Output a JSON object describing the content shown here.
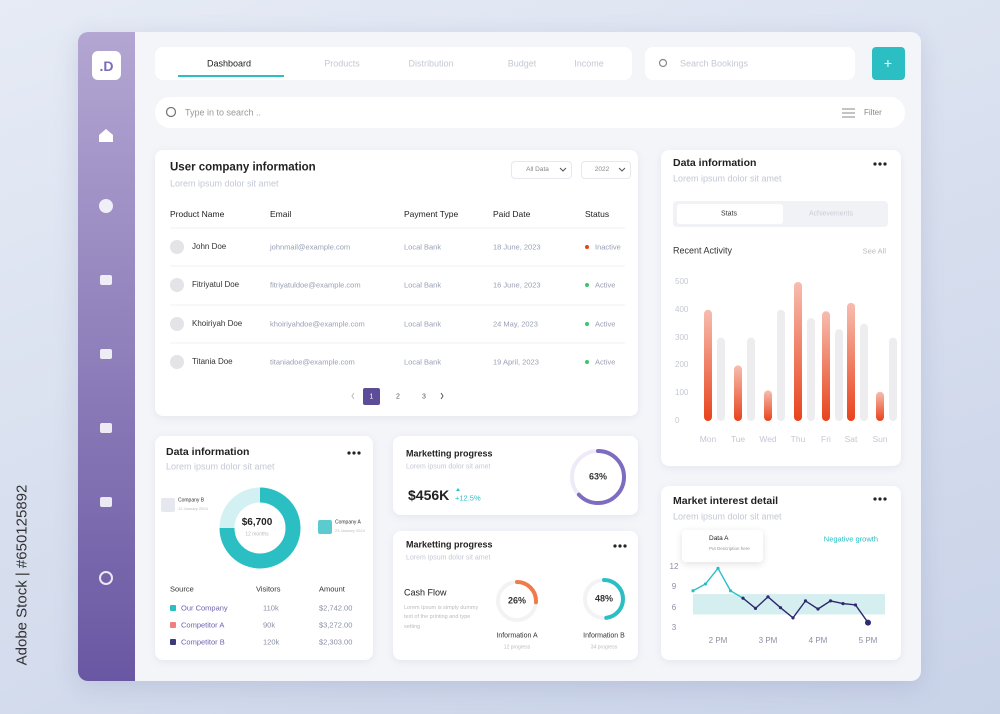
{
  "watermark": "Adobe Stock | #650125892",
  "sidebar": {
    "logo": ".D"
  },
  "nav": {
    "tabs": [
      "Dashboard",
      "Products",
      "Distribution",
      "Budget",
      "Income"
    ],
    "search_bookings": "Search Bookings",
    "add": "+"
  },
  "search": {
    "placeholder": "Type in to search ..",
    "filter": "Filter"
  },
  "users": {
    "title": "User company information",
    "subtitle": "Lorem ipsum dolor sit amet",
    "filters": [
      "All Data",
      "2022"
    ],
    "columns": [
      "Product Name",
      "Email",
      "Payment Type",
      "Paid Date",
      "Status"
    ],
    "rows": [
      [
        "John Doe",
        "johnmail@example.com",
        "Local Bank",
        "18 June, 2023",
        "Inactive"
      ],
      [
        "Fitriyatul Doe",
        "fitriyatuldoe@example.com",
        "Local Bank",
        "16 June, 2023",
        "Active"
      ],
      [
        "Khoiriyah Doe",
        "khoiriyahdoe@example.com",
        "Local Bank",
        "24 May, 2023",
        "Active"
      ],
      [
        "Titania Doe",
        "titaniadoe@example.com",
        "Local Bank",
        "19 April, 2023",
        "Active"
      ]
    ],
    "status_colors": [
      "#e8431c",
      "#3cc46e",
      "#3cc46e",
      "#3cc46e"
    ],
    "pages": [
      "1",
      "2",
      "3"
    ]
  },
  "activity": {
    "title": "Data information",
    "subtitle": "Lorem ipsum dolor sit amet",
    "tabs": [
      "Stats",
      "Achievements"
    ],
    "heading": "Recent Activity",
    "link": "See All"
  },
  "sources": {
    "title": "Data information",
    "subtitle": "Lorem ipsum dolor sit amet",
    "columns": [
      "Source",
      "Visitors",
      "Amount"
    ],
    "rows": [
      [
        "Our Company",
        "110k",
        "$2,742.00"
      ],
      [
        "Competitor A",
        "90k",
        "$3,272.00"
      ],
      [
        "Competitor B",
        "120k",
        "$2,303.00"
      ]
    ],
    "colors": [
      "#2bbfc4",
      "#f08080",
      "#3e3a7a"
    ]
  },
  "progress1": {
    "title": "Marketting progress",
    "subtitle": "Lorem ipsum dolor sit amet",
    "amount": "$456K",
    "change": "+12.5%",
    "ring": {
      "value": 63,
      "label": "63%",
      "color": "#7d6cc0"
    }
  },
  "progress2": {
    "title": "Marketting progress",
    "subtitle": "Lorem ipsum dolor sit amet",
    "heading": "Cash Flow",
    "text": "Lorem Ipsum is simply dummy text of the printing and type setting",
    "rings": [
      {
        "value": 26,
        "label": "26%",
        "name": "Information A",
        "note": "12 progress",
        "color": "#f07a4a"
      },
      {
        "value": 48,
        "label": "48%",
        "name": "Information B",
        "note": "34 progress",
        "color": "#2bbfc4"
      }
    ]
  },
  "market": {
    "title": "Market interest detail",
    "subtitle": "Lorem ipsum dolor sit amet"
  },
  "chart_data": [
    {
      "type": "bar",
      "categories": [
        "Mon",
        "Tue",
        "Wed",
        "Thu",
        "Fri",
        "Sat",
        "Sun"
      ],
      "series": [
        {
          "color": "#e8431c",
          "values": [
            400,
            200,
            110,
            500,
            395,
            425,
            105
          ]
        },
        {
          "color": "#ededf0",
          "values": [
            300,
            300,
            400,
            370,
            330,
            350,
            300
          ]
        }
      ],
      "ylim": [
        0,
        500
      ],
      "yticks": [
        0,
        100,
        200,
        300,
        400,
        500
      ],
      "grid": false
    },
    {
      "type": "line",
      "xlim": [
        13.5,
        17
      ],
      "xticks": [
        {
          "value": 14,
          "label": "2 PM"
        },
        {
          "value": 15,
          "label": "3 PM"
        },
        {
          "value": 16,
          "label": "4 PM"
        },
        {
          "value": 17,
          "label": "5 PM"
        }
      ],
      "ylim": [
        2.5,
        13
      ],
      "yticks": [
        3,
        6,
        9,
        12
      ],
      "band": [
        5,
        8
      ],
      "band_color": "#d5eff1",
      "series": [
        {
          "color": "#2bbfc4",
          "x": [
            13.5,
            13.75,
            14,
            14.25,
            14.5
          ],
          "values": [
            8.5,
            9.5,
            11.8,
            8.5,
            7.4
          ]
        },
        {
          "color": "#2e2a6e",
          "x": [
            14.5,
            14.75,
            15,
            15.25,
            15.5,
            15.75,
            16,
            16.25,
            16.5,
            16.75,
            17
          ],
          "values": [
            7.4,
            5.9,
            7.6,
            6,
            4.5,
            7,
            5.8,
            7,
            6.6,
            6.4,
            3.8
          ]
        }
      ],
      "tooltip": {
        "title": "Data A",
        "text": "Put Description here"
      },
      "annotation": "Negative growth"
    },
    {
      "type": "pie",
      "values": [
        75,
        25
      ],
      "colors": [
        "#2bbfc4",
        "#d3f1f2"
      ],
      "center_value": "$6,700",
      "center_label": "12 months",
      "labels": [
        {
          "name": "Company B",
          "date": "12 January 2024"
        },
        {
          "name": "Company A",
          "date": "23 January 2024"
        }
      ]
    }
  ]
}
